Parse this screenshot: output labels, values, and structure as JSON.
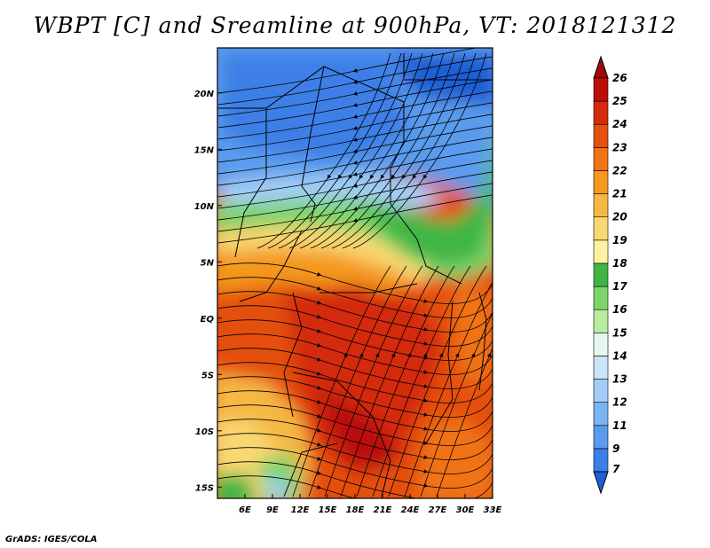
{
  "title": "WBPT [C] and Sreamline at 900hPa, VT: 2018121312",
  "footer": "GrADS: IGES/COLA",
  "map": {
    "lon_range": [
      3,
      33
    ],
    "lat_range": [
      -16,
      24
    ],
    "lon_ticks": [
      "6E",
      "9E",
      "12E",
      "15E",
      "18E",
      "21E",
      "24E",
      "27E",
      "30E",
      "33E"
    ],
    "lon_tick_values": [
      6,
      9,
      12,
      15,
      18,
      21,
      24,
      27,
      30,
      33
    ],
    "lat_ticks": [
      "20N",
      "15N",
      "10N",
      "5N",
      "EQ",
      "5S",
      "10S",
      "15S"
    ],
    "lat_tick_values": [
      20,
      15,
      10,
      5,
      0,
      -5,
      -10,
      -15
    ]
  },
  "colorbar": {
    "labels": [
      "7",
      "9",
      "11",
      "12",
      "13",
      "14",
      "15",
      "16",
      "17",
      "18",
      "19",
      "20",
      "21",
      "22",
      "23",
      "24",
      "25",
      "26"
    ],
    "colors": [
      "#1f5fd6",
      "#3c7fe6",
      "#5a9bee",
      "#7bb4f2",
      "#a3cdf6",
      "#cbe4f8",
      "#e6f7ef",
      "#b9ec9e",
      "#7cd46a",
      "#3fb644",
      "#fbf3a2",
      "#f9d771",
      "#f6b845",
      "#f4981e",
      "#f07314",
      "#e5500f",
      "#d42b0b",
      "#bb0d0a",
      "#a30806"
    ]
  }
}
